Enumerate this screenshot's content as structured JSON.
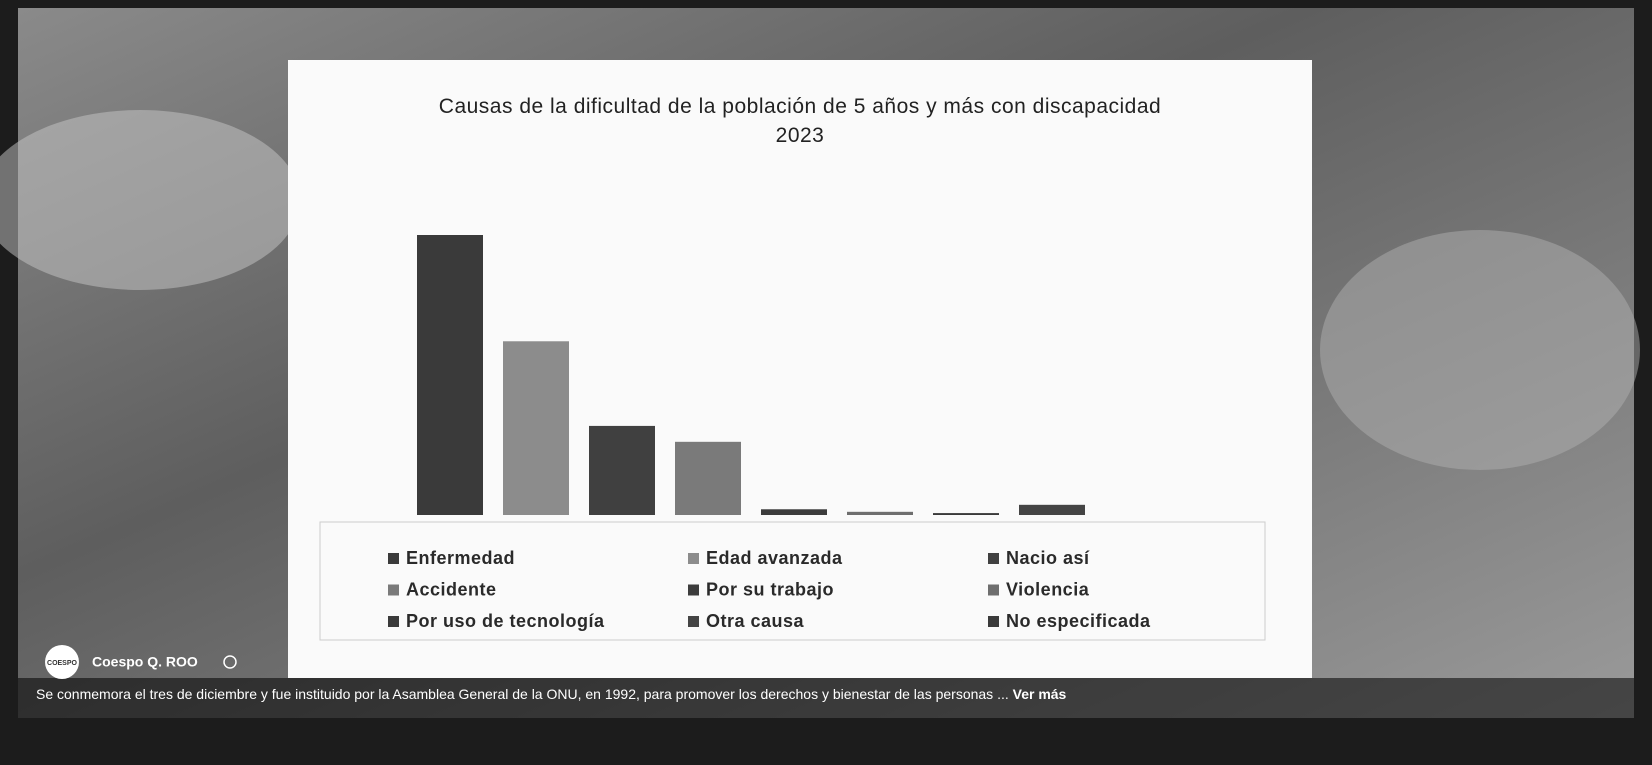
{
  "post": {
    "avatar_label": "COESPO",
    "author": "Coespo Q. ROO",
    "caption": "Se conmemora el tres de diciembre y fue instituido por la Asamblea General de la ONU, en 1992, para promover los derechos y bienestar de las personas ...",
    "more_link": "Ver más"
  },
  "chart_data": {
    "type": "bar",
    "title": "Causas de la dificultad de la población de 5 años y más con discapacidad",
    "subtitle": "2023",
    "categories": [
      "Enfermedad",
      "Edad avanzada",
      "Nacio así",
      "Accidente",
      "Por su trabajo",
      "Violencia",
      "Por uso de tecnología",
      "Otra causa",
      "No especificada"
    ],
    "values": [
      44,
      27.3,
      14,
      11.5,
      0.9,
      0.5,
      0.3,
      1.6,
      0
    ],
    "colors": [
      "#3a3a3a",
      "#8c8c8c",
      "#404040",
      "#7a7a7a",
      "#3c3c3c",
      "#6e6e6e",
      "#3a3a3a",
      "#444444",
      "#3a3a3a"
    ],
    "legend": "bottom"
  }
}
